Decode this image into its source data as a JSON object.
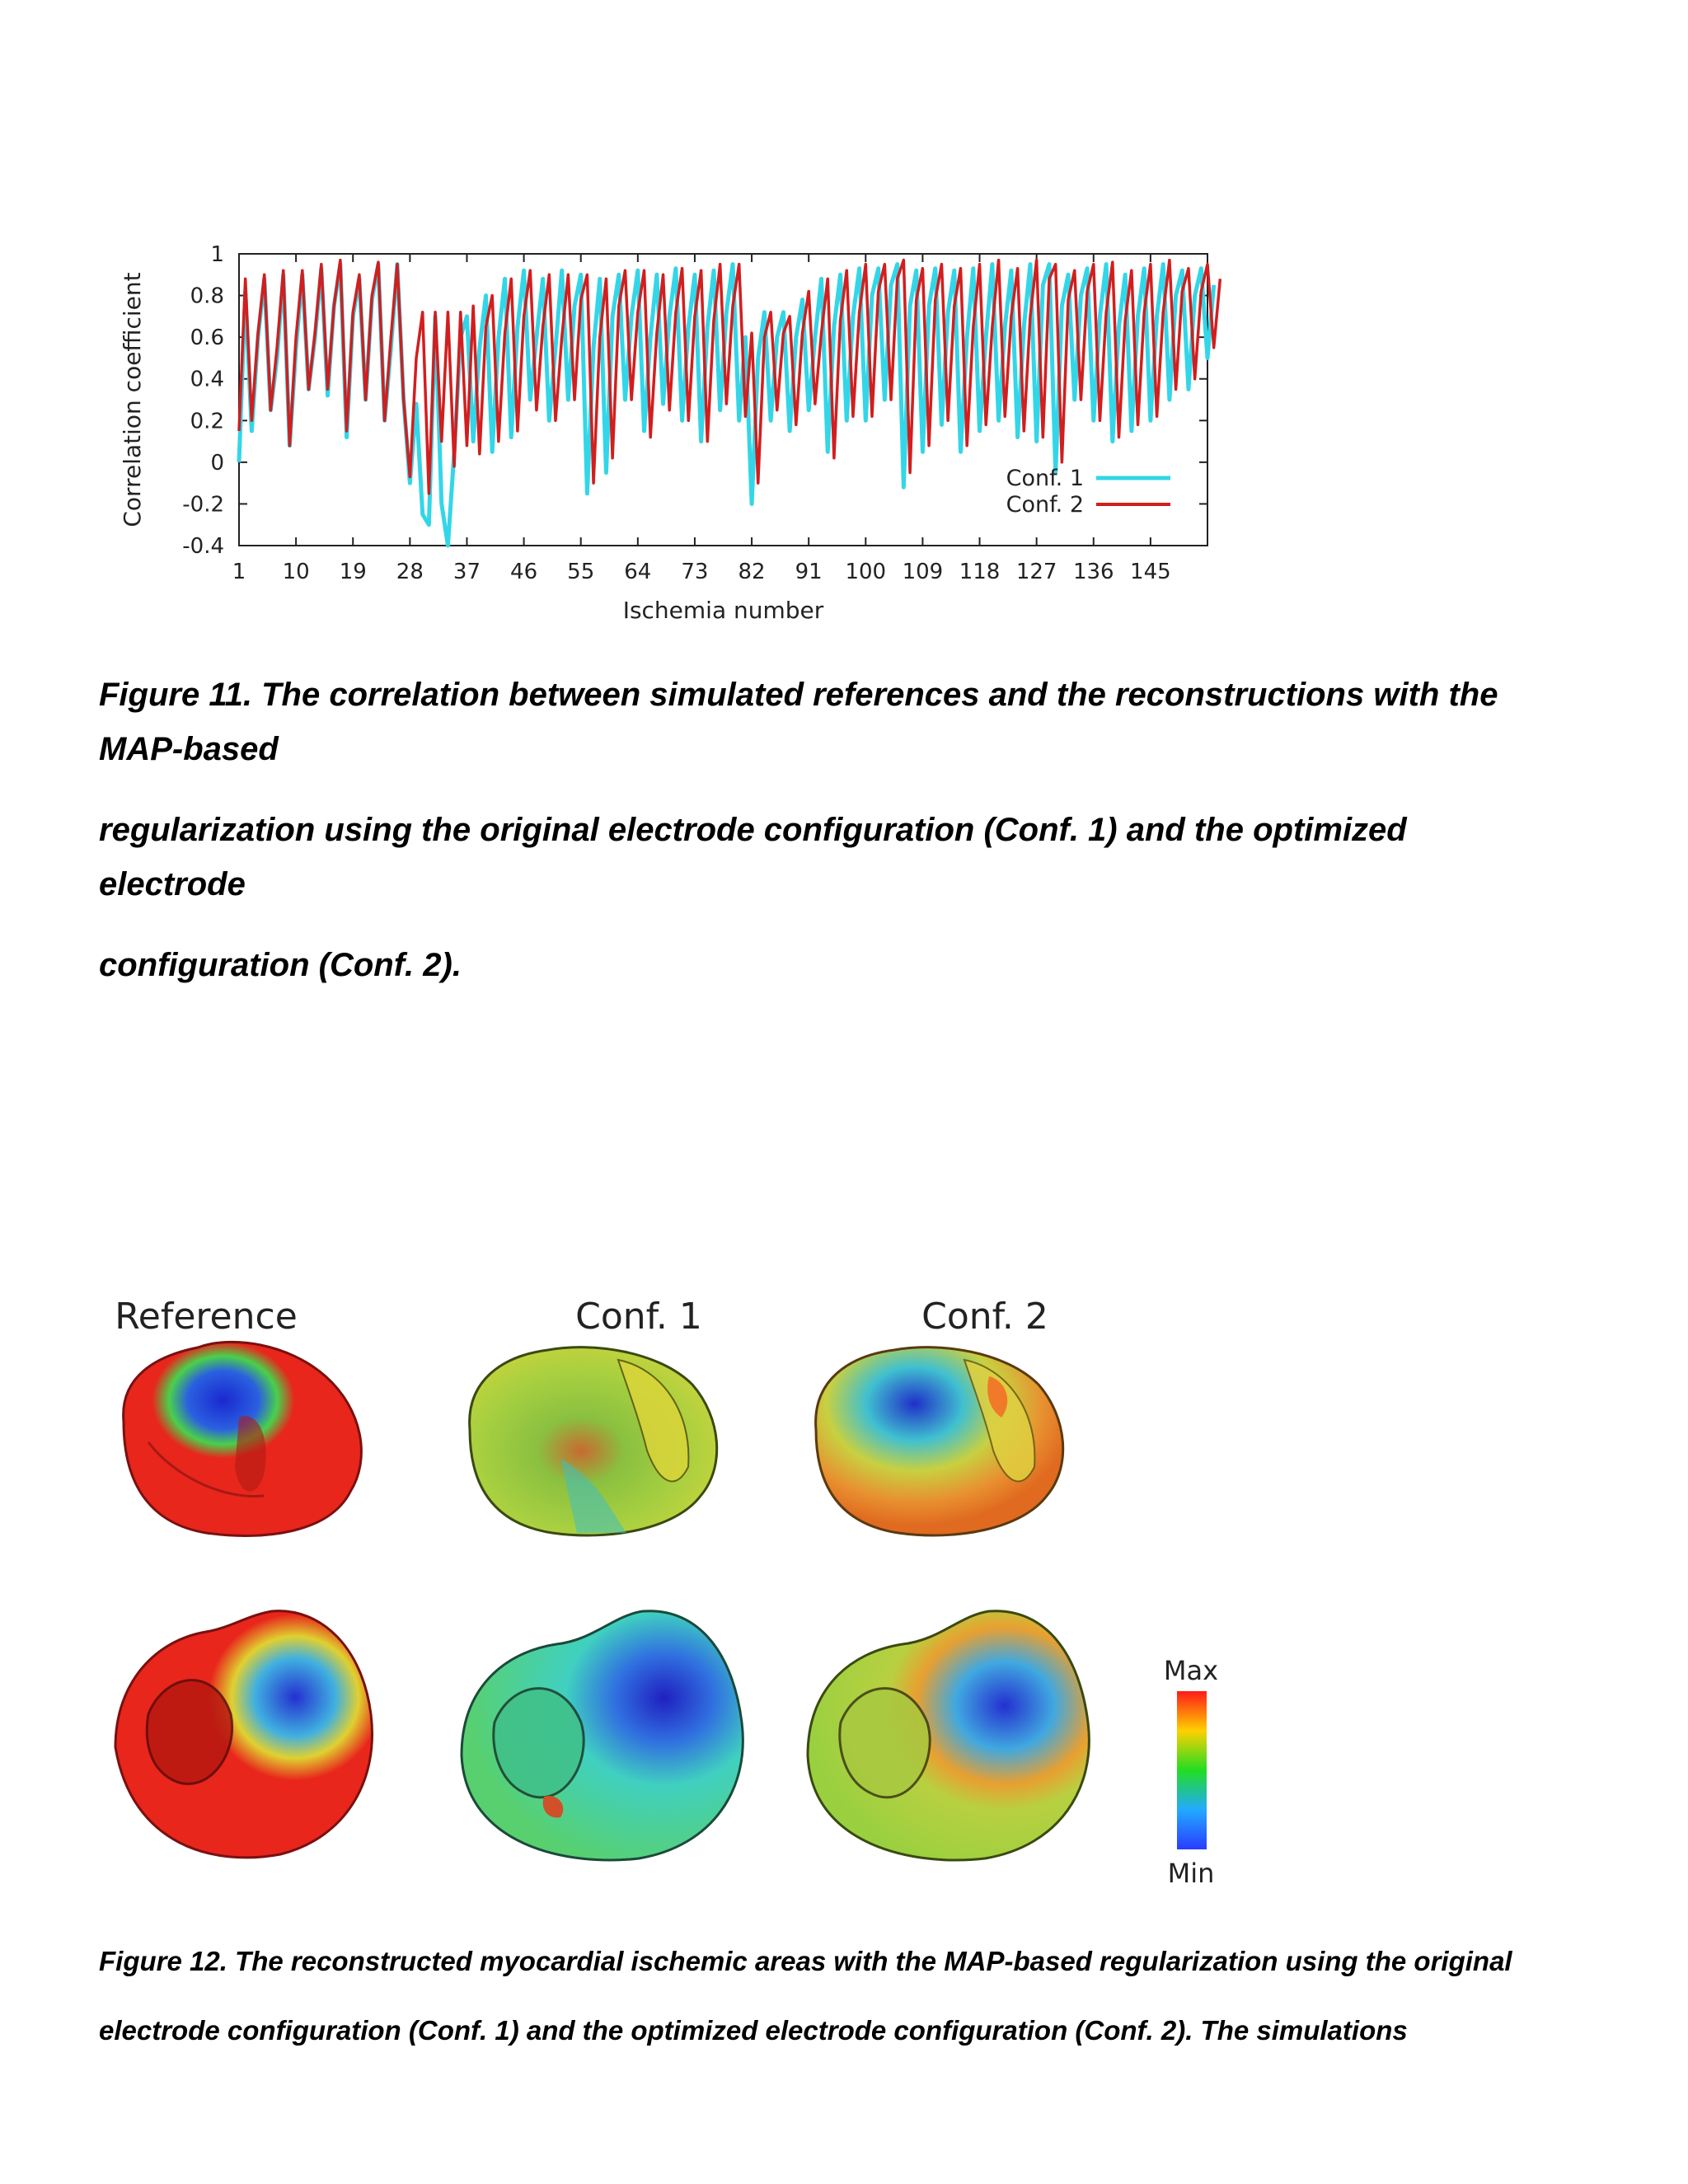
{
  "chart_data": {
    "type": "line",
    "xlabel": "Ischemia number",
    "ylabel": "Correlation coefficient",
    "xlim": [
      1,
      154
    ],
    "ylim": [
      -0.4,
      1
    ],
    "x_ticks": [
      1,
      10,
      19,
      28,
      37,
      46,
      55,
      64,
      73,
      82,
      91,
      100,
      109,
      118,
      127,
      136,
      145
    ],
    "y_ticks": [
      "-0.4",
      "-0.2",
      "0",
      "0.2",
      "0.4",
      "0.6",
      "0.8",
      "1"
    ],
    "legend_position": "bottom-right",
    "series": [
      {
        "name": "Conf. 1",
        "color": "#33d6e8",
        "values": [
          0.0,
          0.82,
          0.15,
          0.6,
          0.88,
          0.25,
          0.5,
          0.9,
          0.08,
          0.55,
          0.9,
          0.35,
          0.6,
          0.93,
          0.32,
          0.75,
          0.95,
          0.12,
          0.7,
          0.88,
          0.3,
          0.78,
          0.95,
          0.2,
          0.55,
          0.95,
          0.3,
          -0.1,
          0.28,
          -0.25,
          -0.3,
          0.7,
          -0.2,
          -0.4,
          0.05,
          0.6,
          0.7,
          0.1,
          0.55,
          0.8,
          0.05,
          0.6,
          0.88,
          0.12,
          0.65,
          0.92,
          0.3,
          0.6,
          0.88,
          0.2,
          0.55,
          0.92,
          0.3,
          0.75,
          0.9,
          -0.15,
          0.55,
          0.88,
          -0.05,
          0.7,
          0.9,
          0.3,
          0.7,
          0.92,
          0.15,
          0.6,
          0.9,
          0.28,
          0.7,
          0.93,
          0.2,
          0.65,
          0.9,
          0.1,
          0.65,
          0.92,
          0.25,
          0.72,
          0.95,
          0.2,
          0.6,
          -0.2,
          0.5,
          0.72,
          0.2,
          0.6,
          0.72,
          0.15,
          0.6,
          0.78,
          0.25,
          0.6,
          0.88,
          0.05,
          0.65,
          0.9,
          0.2,
          0.7,
          0.93,
          0.2,
          0.8,
          0.93,
          0.3,
          0.85,
          0.95,
          -0.12,
          0.75,
          0.92,
          0.05,
          0.75,
          0.93,
          0.18,
          0.72,
          0.92,
          0.05,
          0.6,
          0.93,
          0.15,
          0.6,
          0.95,
          0.2,
          0.65,
          0.92,
          0.12,
          0.65,
          0.95,
          0.1,
          0.85,
          0.95,
          -0.05,
          0.75,
          0.9,
          0.3,
          0.8,
          0.93,
          0.2,
          0.7,
          0.95,
          0.1,
          0.65,
          0.9,
          0.15,
          0.7,
          0.93,
          0.2,
          0.7,
          0.95,
          0.3,
          0.8,
          0.92,
          0.35,
          0.8,
          0.93,
          0.5,
          0.85
        ],
        "note_shape": "sawtooth"
      },
      {
        "name": "Conf. 2",
        "color": "#d21e1e",
        "values": [
          0.15,
          0.88,
          0.2,
          0.62,
          0.9,
          0.25,
          0.55,
          0.92,
          0.08,
          0.6,
          0.92,
          0.35,
          0.62,
          0.95,
          0.35,
          0.75,
          0.97,
          0.15,
          0.72,
          0.9,
          0.3,
          0.8,
          0.96,
          0.2,
          0.6,
          0.95,
          0.3,
          -0.07,
          0.5,
          0.72,
          -0.15,
          0.72,
          0.1,
          0.72,
          -0.02,
          0.72,
          0.08,
          0.75,
          0.04,
          0.65,
          0.8,
          0.1,
          0.62,
          0.88,
          0.15,
          0.7,
          0.92,
          0.25,
          0.65,
          0.9,
          0.2,
          0.6,
          0.9,
          0.3,
          0.78,
          0.9,
          -0.1,
          0.6,
          0.88,
          0.02,
          0.75,
          0.92,
          0.3,
          0.72,
          0.92,
          0.12,
          0.62,
          0.9,
          0.25,
          0.72,
          0.93,
          0.2,
          0.7,
          0.92,
          0.1,
          0.68,
          0.95,
          0.28,
          0.75,
          0.95,
          0.22,
          0.62,
          -0.1,
          0.6,
          0.72,
          0.25,
          0.62,
          0.7,
          0.18,
          0.62,
          0.82,
          0.28,
          0.62,
          0.88,
          0.02,
          0.68,
          0.92,
          0.22,
          0.72,
          0.95,
          0.22,
          0.82,
          0.95,
          0.3,
          0.88,
          0.97,
          -0.05,
          0.78,
          0.93,
          0.08,
          0.78,
          0.95,
          0.2,
          0.75,
          0.93,
          0.08,
          0.65,
          0.95,
          0.18,
          0.65,
          0.97,
          0.22,
          0.7,
          0.93,
          0.15,
          0.7,
          0.97,
          0.12,
          0.88,
          0.95,
          0.0,
          0.78,
          0.92,
          0.3,
          0.82,
          0.95,
          0.2,
          0.72,
          0.96,
          0.12,
          0.68,
          0.92,
          0.18,
          0.72,
          0.95,
          0.22,
          0.72,
          0.97,
          0.35,
          0.82,
          0.93,
          0.4,
          0.82,
          0.95,
          0.55,
          0.88
        ]
      }
    ]
  },
  "fig11_caption_lines": [
    "Figure 11. The correlation between simulated references and the reconstructions with the",
    "MAP-based",
    "regularization using the original electrode configuration (Conf. 1) and the optimized",
    "electrode",
    "configuration (Conf. 2)."
  ],
  "fig12": {
    "column_titles": [
      "Reference",
      "Conf. 1",
      "Conf. 2"
    ],
    "colorbar": {
      "max_label": "Max",
      "min_label": "Min",
      "colors": [
        "#ff1a1a",
        "#ffd000",
        "#22dd22",
        "#22aaff",
        "#2a3cff"
      ]
    },
    "palette": {
      "red": "#e8261c",
      "yellow": "#d8d43a",
      "green": "#5cc65a",
      "cyan": "#40d8d0",
      "blue": "#2430d0",
      "orange": "#f08a2a",
      "dark": "#3a2a1a"
    }
  },
  "fig12_caption_lines": [
    "Figure 12. The reconstructed myocardial ischemic areas with the MAP-based regularization using the original",
    "electrode configuration (Conf. 1) and the optimized electrode configuration (Conf. 2). The simulations"
  ]
}
